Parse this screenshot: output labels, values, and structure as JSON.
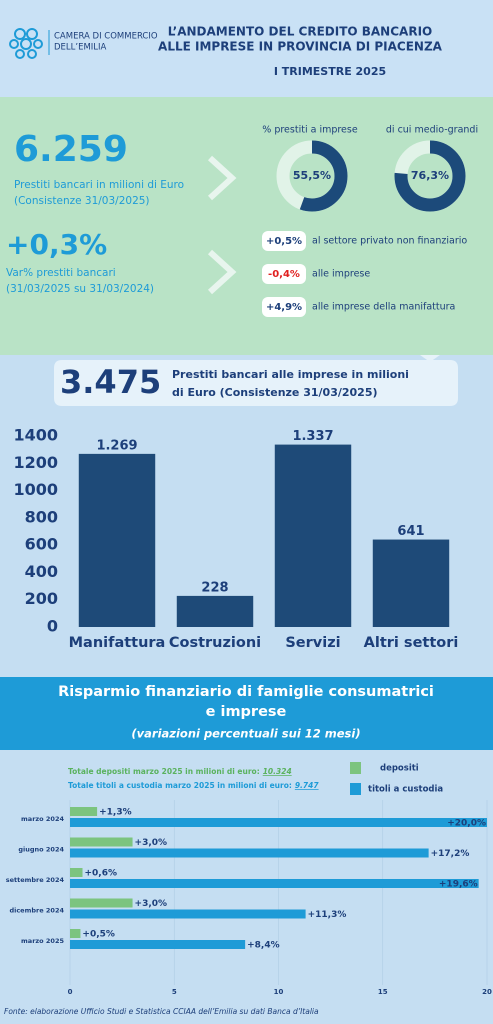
{
  "header": {
    "logo": [
      "CAMERA DI COMMERCIO",
      "DELL’EMILIA"
    ],
    "title": [
      "L’ANDAMENTO DEL CREDITO BANCARIO",
      "ALLE IMPRESE IN PROVINCIA DI PIACENZA"
    ],
    "period": "I TRIMESTRE 2025"
  },
  "loans": {
    "value": "6.259",
    "label": "Prestiti bancari in milioni di Euro",
    "note": "(Consistenze 31/03/2025)"
  },
  "variation": {
    "value": "+0,3%",
    "label": "Var% prestiti bancari",
    "note": "(31/03/2025 su 31/03/2024)",
    "items": [
      {
        "value": "+0,5%",
        "label": "al settore privato non finanziario"
      },
      {
        "value": "-0,4%",
        "label": "alle imprese"
      },
      {
        "value": "+4,9%",
        "label": "alle imprese della manifattura"
      }
    ]
  },
  "business_loans": {
    "value": "3.475",
    "label": [
      "Prestiti bancari alle imprese in milioni",
      "di Euro (Consistenze 31/03/2025)"
    ]
  },
  "savings": {
    "title": [
      "Risparmio finanziario di famiglie consumatrici",
      "e imprese"
    ],
    "subtitle": "(variazioni percentuali sui 12 mesi)"
  },
  "source": "Fonte: elaborazione Ufficio Studi e Statistica CCIAA dell’Emilia su dati Banca d’Italia",
  "chart_data": [
    {
      "type": "donut",
      "title": "% prestiti a imprese",
      "values": [
        55.5
      ],
      "value_labels": [
        "55,5%"
      ],
      "color": "#1c4a7a"
    },
    {
      "type": "donut",
      "title": "di cui medio-grandi",
      "values": [
        76.3
      ],
      "value_labels": [
        "76,3%"
      ],
      "color": "#1c4a7a"
    },
    {
      "type": "bar",
      "categories": [
        "Manifattura",
        "Costruzioni",
        "Servizi",
        "Altri settori"
      ],
      "values": [
        1269,
        228,
        1337,
        641
      ],
      "value_labels": [
        "1.269",
        "228",
        "1.337",
        "641"
      ],
      "color": "#1e4a78",
      "ylim": [
        0,
        1400
      ],
      "yticks": [
        0,
        200,
        400,
        600,
        800,
        1000,
        1200,
        1400
      ],
      "grid": false
    },
    {
      "type": "hbar",
      "categories": [
        "marzo 2024",
        "giugno 2024",
        "settembre 2024",
        "dicembre 2024",
        "marzo 2025"
      ],
      "series": [
        {
          "name": "depositi",
          "color": "#7cc47f",
          "values": [
            1.3,
            3.0,
            0.6,
            3.0,
            0.5
          ],
          "value_labels": [
            "+1,3%",
            "+3,0%",
            "+0,6%",
            "+3,0%",
            "+0,5%"
          ]
        },
        {
          "name": "titoli a custodia",
          "color": "#1e9bd7",
          "values": [
            20.0,
            17.2,
            19.6,
            11.3,
            8.4
          ],
          "value_labels": [
            "+20,0%",
            "+17,2%",
            "+19,6%",
            "+11,3%",
            "+8,4%"
          ]
        }
      ],
      "annotations": [
        {
          "text": "Totale depositi marzo 2025 in milioni di euro:",
          "value": "10.324"
        },
        {
          "text": "Totale titoli a custodia marzo 2025 in milioni di euro:",
          "value": "9.747"
        }
      ],
      "xlim": [
        0,
        20
      ],
      "xticks": [
        0,
        5,
        10,
        15,
        20
      ],
      "grid": true,
      "legend": "top-right"
    }
  ]
}
